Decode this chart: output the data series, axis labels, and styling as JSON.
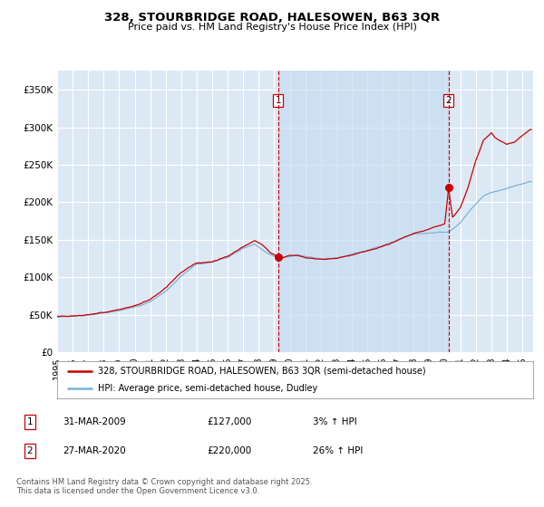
{
  "title": "328, STOURBRIDGE ROAD, HALESOWEN, B63 3QR",
  "subtitle": "Price paid vs. HM Land Registry's House Price Index (HPI)",
  "legend_line1": "328, STOURBRIDGE ROAD, HALESOWEN, B63 3QR (semi-detached house)",
  "legend_line2": "HPI: Average price, semi-detached house, Dudley",
  "marker1_date": "31-MAR-2009",
  "marker1_price": 127000,
  "marker1_label": "3% ↑ HPI",
  "marker2_date": "27-MAR-2020",
  "marker2_price": 220000,
  "marker2_label": "26% ↑ HPI",
  "footnote": "Contains HM Land Registry data © Crown copyright and database right 2025.\nThis data is licensed under the Open Government Licence v3.0.",
  "hpi_color": "#7ab4d8",
  "price_color": "#cc0000",
  "marker_color": "#cc0000",
  "background_color": "#ffffff",
  "plot_background": "#dce9f5",
  "shade_color": "#c8ddf0",
  "grid_color": "#ffffff",
  "vline_color": "#cc0000",
  "ylim": [
    0,
    375000
  ],
  "xlim_start": 1995.0,
  "xlim_end": 2025.7,
  "yticks": [
    0,
    50000,
    100000,
    150000,
    200000,
    250000,
    300000,
    350000
  ],
  "ytick_labels": [
    "£0",
    "£50K",
    "£100K",
    "£150K",
    "£200K",
    "£250K",
    "£300K",
    "£350K"
  ],
  "xticks": [
    1995,
    1996,
    1997,
    1998,
    1999,
    2000,
    2001,
    2002,
    2003,
    2004,
    2005,
    2006,
    2007,
    2008,
    2009,
    2010,
    2011,
    2012,
    2013,
    2014,
    2015,
    2016,
    2017,
    2018,
    2019,
    2020,
    2021,
    2022,
    2023,
    2024,
    2025
  ],
  "vline1_x": 2009.25,
  "vline2_x": 2020.25,
  "marker1_x": 2009.25,
  "marker2_x": 2020.25
}
